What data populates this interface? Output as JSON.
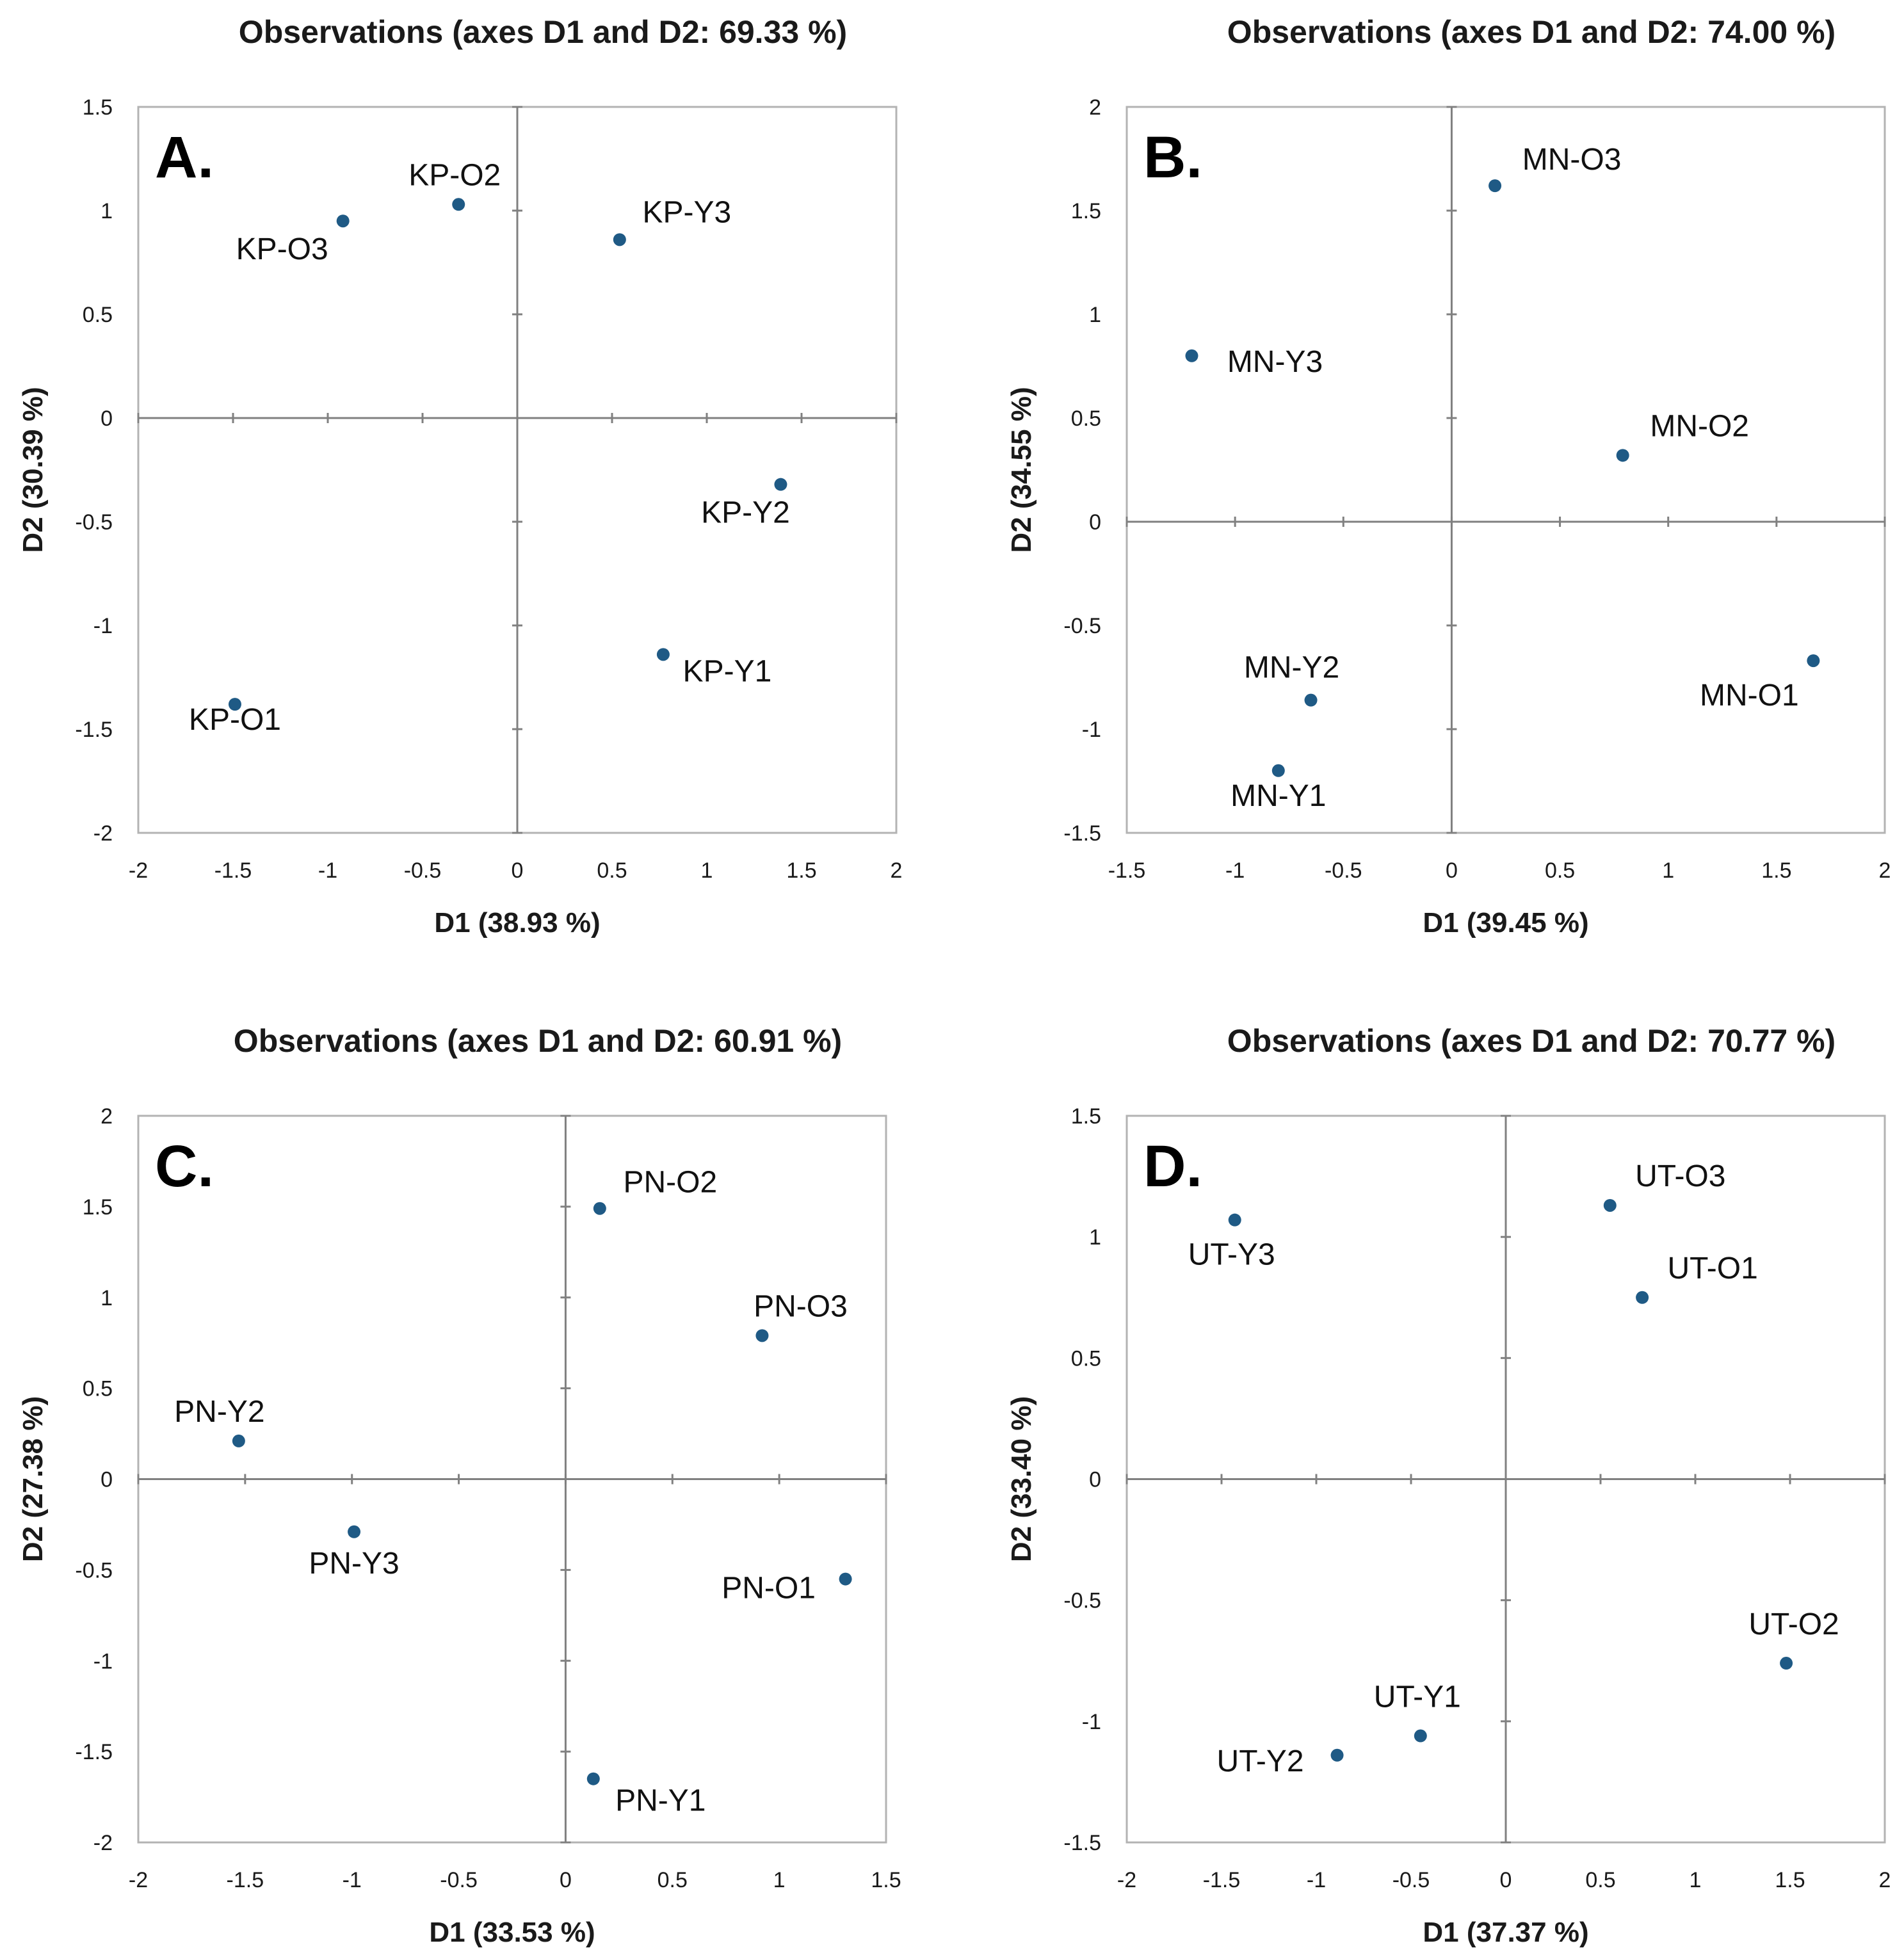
{
  "chart_data": [
    {
      "type": "scatter",
      "panel": "A.",
      "title": "Observations (axes D1 and D2: 69.33 %)",
      "xlabel": "D1 (38.93 %)",
      "ylabel": "D2 (30.39 %)",
      "xlim": [
        -2,
        2
      ],
      "ylim": [
        -2,
        1.5
      ],
      "xticks": [
        -2,
        -1.5,
        -1,
        -0.5,
        0,
        0.5,
        1,
        1.5,
        2
      ],
      "yticks": [
        -2,
        -1.5,
        -1,
        -0.5,
        0,
        0.5,
        1,
        1.5
      ],
      "xtick_labels": [
        "-2",
        "-1.5",
        "-1",
        "-0.5",
        "0",
        "0.5",
        "1",
        "1.5",
        "2"
      ],
      "ytick_labels": [
        "-2",
        "-1.5",
        "-1",
        "-0.5",
        "0",
        "0.5",
        "1",
        "1.5"
      ],
      "points": [
        {
          "label": "KP-O2",
          "x": -0.31,
          "y": 1.03
        },
        {
          "label": "KP-O3",
          "x": -0.92,
          "y": 0.95
        },
        {
          "label": "KP-Y3",
          "x": 0.54,
          "y": 0.86
        },
        {
          "label": "KP-Y2",
          "x": 1.39,
          "y": -0.32
        },
        {
          "label": "KP-Y1",
          "x": 0.77,
          "y": -1.14
        },
        {
          "label": "KP-O1",
          "x": -1.49,
          "y": -1.38
        }
      ],
      "grid": false,
      "marker_color": "#1f5a85"
    },
    {
      "type": "scatter",
      "panel": "B.",
      "title": "Observations (axes D1 and D2: 74.00 %)",
      "xlabel": "D1 (39.45 %)",
      "ylabel": "D2 (34.55 %)",
      "xlim": [
        -1.5,
        2
      ],
      "ylim": [
        -1.5,
        2
      ],
      "xticks": [
        -1.5,
        -1,
        -0.5,
        0,
        0.5,
        1,
        1.5,
        2
      ],
      "yticks": [
        -1.5,
        -1,
        -0.5,
        0,
        0.5,
        1,
        1.5,
        2
      ],
      "xtick_labels": [
        "-1.5",
        "-1",
        "-0.5",
        "0",
        "0.5",
        "1",
        "1.5",
        "2"
      ],
      "ytick_labels": [
        "-1.5",
        "-1",
        "-0.5",
        "0",
        "0.5",
        "1",
        "1.5",
        "2"
      ],
      "points": [
        {
          "label": "MN-O3",
          "x": 0.2,
          "y": 1.62
        },
        {
          "label": "MN-Y3",
          "x": -1.2,
          "y": 0.8
        },
        {
          "label": "MN-O2",
          "x": 0.79,
          "y": 0.32
        },
        {
          "label": "MN-O1",
          "x": 1.67,
          "y": -0.67
        },
        {
          "label": "MN-Y2",
          "x": -0.65,
          "y": -0.86
        },
        {
          "label": "MN-Y1",
          "x": -0.8,
          "y": -1.2
        }
      ],
      "grid": false,
      "marker_color": "#1f5a85"
    },
    {
      "type": "scatter",
      "panel": "C.",
      "title": "Observations (axes D1 and D2: 60.91 %)",
      "xlabel": "D1 (33.53 %)",
      "ylabel": "D2 (27.38 %)",
      "xlim": [
        -2,
        1.5
      ],
      "ylim": [
        -2,
        2
      ],
      "xticks": [
        -2,
        -1.5,
        -1,
        -0.5,
        0,
        0.5,
        1,
        1.5
      ],
      "yticks": [
        -2,
        -1.5,
        -1,
        -0.5,
        0,
        0.5,
        1,
        1.5,
        2
      ],
      "xtick_labels": [
        "-2",
        "-1.5",
        "-1",
        "-0.5",
        "0",
        "0.5",
        "1",
        "1.5"
      ],
      "ytick_labels": [
        "-2",
        "-1.5",
        "-1",
        "-0.5",
        "0",
        "0.5",
        "1",
        "1.5",
        "2"
      ],
      "points": [
        {
          "label": "PN-O2",
          "x": 0.16,
          "y": 1.49
        },
        {
          "label": "PN-O3",
          "x": 0.92,
          "y": 0.79
        },
        {
          "label": "PN-Y2",
          "x": -1.53,
          "y": 0.21
        },
        {
          "label": "PN-Y3",
          "x": -0.99,
          "y": -0.29
        },
        {
          "label": "PN-O1",
          "x": 1.31,
          "y": -0.55
        },
        {
          "label": "PN-Y1",
          "x": 0.13,
          "y": -1.65
        }
      ],
      "grid": false,
      "marker_color": "#1f5a85"
    },
    {
      "type": "scatter",
      "panel": "D.",
      "title": "Observations (axes D1 and D2: 70.77 %)",
      "xlabel": "D1 (37.37 %)",
      "ylabel": "D2 (33.40 %)",
      "xlim": [
        -2,
        2
      ],
      "ylim": [
        -1.5,
        1.5
      ],
      "xticks": [
        -2,
        -1.5,
        -1,
        -0.5,
        0,
        0.5,
        1,
        1.5,
        2
      ],
      "yticks": [
        -1.5,
        -1,
        -0.5,
        0,
        0.5,
        1,
        1.5
      ],
      "xtick_labels": [
        "-2",
        "-1.5",
        "-1",
        "-0.5",
        "0",
        "0.5",
        "1",
        "1.5",
        "2"
      ],
      "ytick_labels": [
        "-1.5",
        "-1",
        "-0.5",
        "0",
        "0.5",
        "1",
        "1.5"
      ],
      "points": [
        {
          "label": "UT-O3",
          "x": 0.55,
          "y": 1.13
        },
        {
          "label": "UT-Y3",
          "x": -1.43,
          "y": 1.07
        },
        {
          "label": "UT-O1",
          "x": 0.72,
          "y": 0.75
        },
        {
          "label": "UT-O2",
          "x": 1.48,
          "y": -0.76
        },
        {
          "label": "UT-Y1",
          "x": -0.45,
          "y": -1.06
        },
        {
          "label": "UT-Y2",
          "x": -0.89,
          "y": -1.14
        }
      ],
      "grid": false,
      "marker_color": "#1f5a85"
    }
  ]
}
